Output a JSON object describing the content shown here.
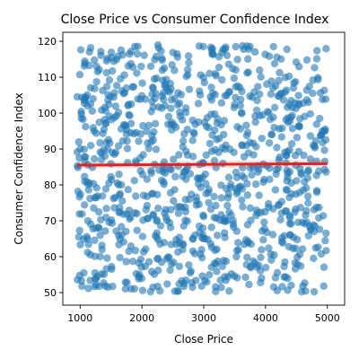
{
  "chart_data": {
    "type": "scatter",
    "title": "Close Price vs Consumer Confidence Index",
    "xlabel": "Close Price",
    "ylabel": "Consumer Confidence Index",
    "xlim": [
      720,
      5280
    ],
    "ylim": [
      46.5,
      122.5
    ],
    "x_ticks": [
      1000,
      2000,
      3000,
      4000,
      5000
    ],
    "y_ticks": [
      50,
      60,
      70,
      80,
      90,
      100,
      110,
      120
    ],
    "grid": false,
    "legend": "none",
    "point_color": "#1f77b4",
    "regression_color": "#d62728",
    "n_points": 1000,
    "x_range": [
      950,
      5000
    ],
    "y_range": [
      50,
      119
    ],
    "regression_line": {
      "x": [
        950,
        5000
      ],
      "y": [
        85.5,
        85.9
      ]
    },
    "ci_band": {
      "lower": [
        84.6,
        84.8
      ],
      "upper": [
        86.4,
        87.0
      ]
    }
  }
}
